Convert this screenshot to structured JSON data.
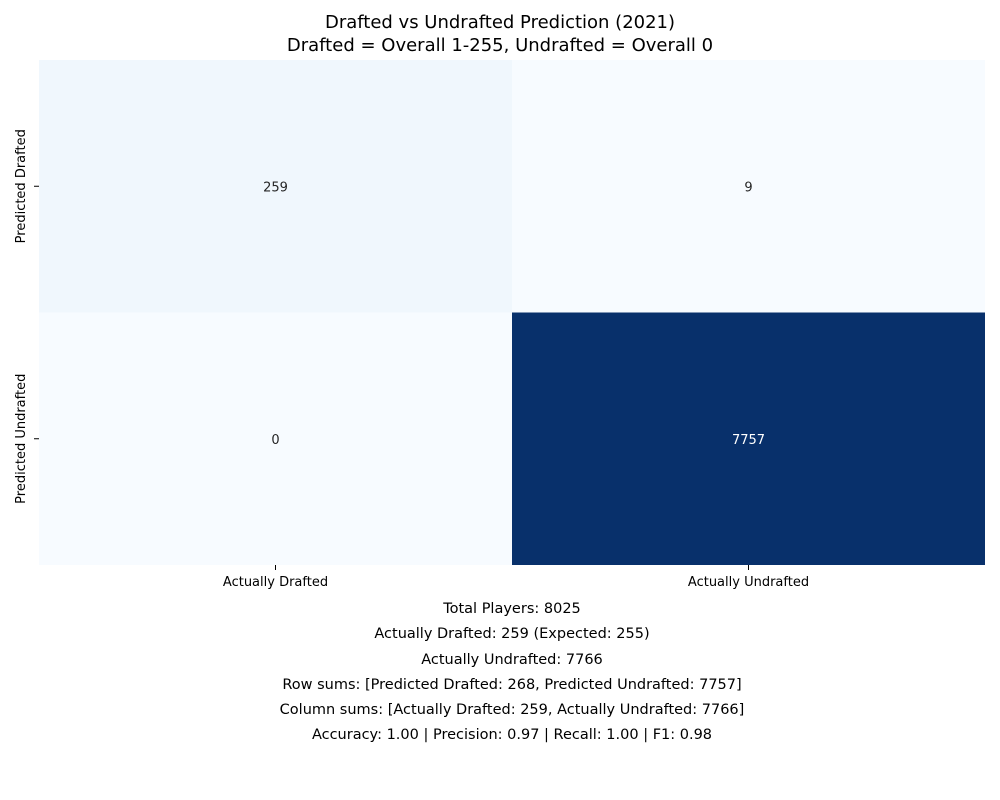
{
  "chart_data": {
    "type": "heatmap",
    "title": "Drafted vs Undrafted Prediction (2021)",
    "subtitle": "Drafted = Overall 1-255, Undrafted = Overall 0",
    "row_labels": [
      "Predicted Drafted",
      "Predicted Undrafted"
    ],
    "col_labels": [
      "Actually Drafted",
      "Actually Undrafted"
    ],
    "values": [
      [
        259,
        9
      ],
      [
        0,
        7757
      ]
    ],
    "colormap": "Blues",
    "colorbar": false,
    "colors": {
      "low": "#f7fbff",
      "high": "#08306b"
    }
  },
  "stats": [
    "Total Players: 8025",
    "Actually Drafted: 259 (Expected: 255)",
    "Actually Undrafted: 7766",
    "Row sums: [Predicted Drafted: 268, Predicted Undrafted: 7757]",
    "Column sums: [Actually Drafted: 259, Actually Undrafted: 7766]",
    "Accuracy: 1.00 | Precision: 0.97 | Recall: 1.00 | F1: 0.98"
  ]
}
